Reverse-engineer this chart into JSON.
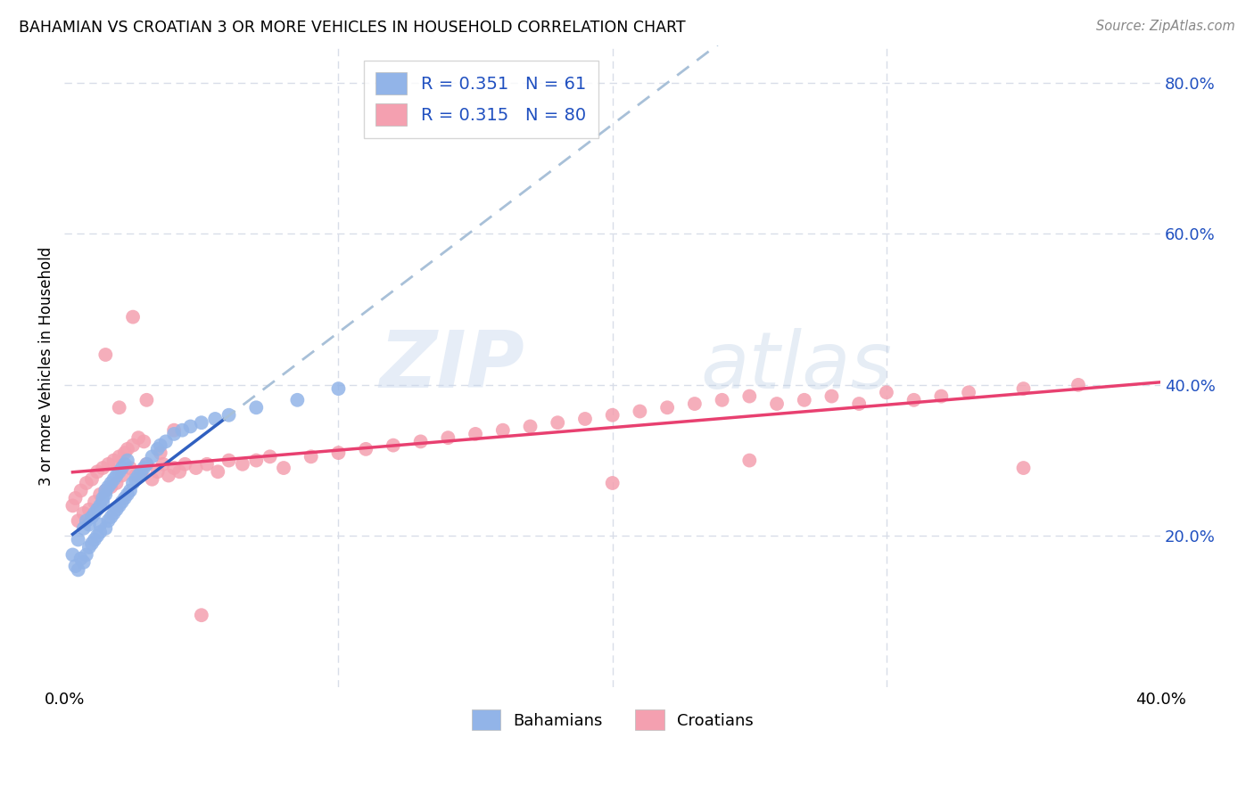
{
  "title": "BAHAMIAN VS CROATIAN 3 OR MORE VEHICLES IN HOUSEHOLD CORRELATION CHART",
  "source": "Source: ZipAtlas.com",
  "ylabel": "3 or more Vehicles in Household",
  "watermark": "ZIPatlas",
  "bahamian_R": 0.351,
  "bahamian_N": 61,
  "croatian_R": 0.315,
  "croatian_N": 80,
  "xlim": [
    0.0,
    0.4
  ],
  "ylim": [
    0.0,
    0.85
  ],
  "yticks": [
    0.2,
    0.4,
    0.6,
    0.8
  ],
  "ytick_labels": [
    "20.0%",
    "40.0%",
    "60.0%",
    "80.0%"
  ],
  "xticks": [
    0.0,
    0.1,
    0.2,
    0.3,
    0.4
  ],
  "bahamian_color": "#92b4e8",
  "croatian_color": "#f4a0b0",
  "bahamian_line_color": "#3060c0",
  "croatian_line_color": "#e84070",
  "trend_line_dashed_color": "#a8c0d8",
  "background_color": "#ffffff",
  "grid_color": "#d8dde8",
  "legend_text_color": "#2050c0",
  "bahamian_x": [
    0.003,
    0.004,
    0.005,
    0.005,
    0.006,
    0.007,
    0.007,
    0.008,
    0.008,
    0.009,
    0.009,
    0.01,
    0.01,
    0.011,
    0.011,
    0.012,
    0.012,
    0.013,
    0.013,
    0.013,
    0.014,
    0.014,
    0.015,
    0.015,
    0.015,
    0.016,
    0.016,
    0.017,
    0.017,
    0.018,
    0.018,
    0.019,
    0.019,
    0.02,
    0.02,
    0.021,
    0.021,
    0.022,
    0.022,
    0.023,
    0.023,
    0.024,
    0.025,
    0.026,
    0.027,
    0.028,
    0.029,
    0.03,
    0.032,
    0.034,
    0.035,
    0.037,
    0.04,
    0.043,
    0.046,
    0.05,
    0.055,
    0.06,
    0.07,
    0.085,
    0.1
  ],
  "bahamian_y": [
    0.175,
    0.16,
    0.155,
    0.195,
    0.17,
    0.165,
    0.21,
    0.175,
    0.22,
    0.185,
    0.215,
    0.19,
    0.225,
    0.195,
    0.23,
    0.2,
    0.235,
    0.205,
    0.24,
    0.215,
    0.245,
    0.25,
    0.21,
    0.255,
    0.26,
    0.22,
    0.265,
    0.225,
    0.27,
    0.23,
    0.275,
    0.235,
    0.28,
    0.24,
    0.285,
    0.245,
    0.29,
    0.25,
    0.295,
    0.255,
    0.3,
    0.26,
    0.27,
    0.275,
    0.28,
    0.285,
    0.29,
    0.295,
    0.305,
    0.315,
    0.32,
    0.325,
    0.335,
    0.34,
    0.345,
    0.35,
    0.355,
    0.36,
    0.37,
    0.38,
    0.395
  ],
  "croatian_x": [
    0.003,
    0.004,
    0.005,
    0.006,
    0.007,
    0.008,
    0.009,
    0.01,
    0.011,
    0.012,
    0.013,
    0.014,
    0.015,
    0.016,
    0.017,
    0.018,
    0.019,
    0.02,
    0.021,
    0.022,
    0.023,
    0.024,
    0.025,
    0.026,
    0.027,
    0.028,
    0.029,
    0.03,
    0.032,
    0.034,
    0.036,
    0.038,
    0.04,
    0.042,
    0.044,
    0.048,
    0.052,
    0.056,
    0.06,
    0.065,
    0.07,
    0.075,
    0.08,
    0.09,
    0.1,
    0.11,
    0.12,
    0.13,
    0.14,
    0.15,
    0.16,
    0.17,
    0.18,
    0.19,
    0.2,
    0.21,
    0.22,
    0.23,
    0.24,
    0.25,
    0.26,
    0.27,
    0.28,
    0.29,
    0.3,
    0.31,
    0.32,
    0.33,
    0.35,
    0.37,
    0.015,
    0.02,
    0.025,
    0.03,
    0.035,
    0.04,
    0.05,
    0.2,
    0.25,
    0.35
  ],
  "croatian_y": [
    0.24,
    0.25,
    0.22,
    0.26,
    0.23,
    0.27,
    0.235,
    0.275,
    0.245,
    0.285,
    0.255,
    0.29,
    0.26,
    0.295,
    0.265,
    0.3,
    0.27,
    0.305,
    0.28,
    0.31,
    0.315,
    0.29,
    0.32,
    0.28,
    0.33,
    0.285,
    0.325,
    0.295,
    0.275,
    0.285,
    0.295,
    0.28,
    0.29,
    0.285,
    0.295,
    0.29,
    0.295,
    0.285,
    0.3,
    0.295,
    0.3,
    0.305,
    0.29,
    0.305,
    0.31,
    0.315,
    0.32,
    0.325,
    0.33,
    0.335,
    0.34,
    0.345,
    0.35,
    0.355,
    0.36,
    0.365,
    0.37,
    0.375,
    0.38,
    0.385,
    0.375,
    0.38,
    0.385,
    0.375,
    0.39,
    0.38,
    0.385,
    0.39,
    0.395,
    0.4,
    0.44,
    0.37,
    0.49,
    0.38,
    0.31,
    0.34,
    0.095,
    0.27,
    0.3,
    0.29
  ]
}
